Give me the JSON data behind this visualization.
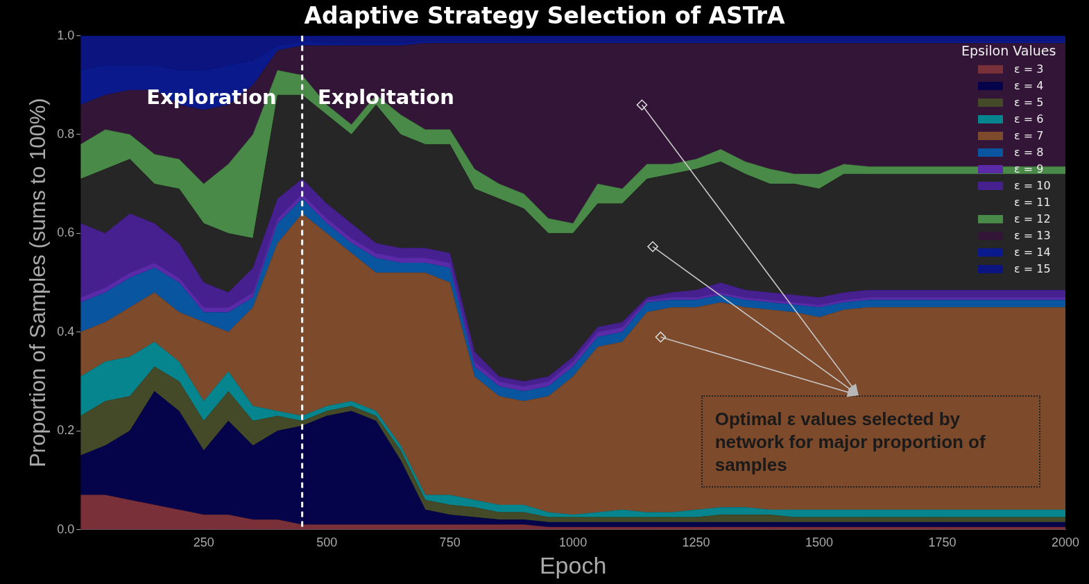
{
  "chart_data": {
    "type": "area",
    "stacked": true,
    "title": "Adaptive Strategy Selection of ASTrA",
    "xlabel": "Epoch",
    "ylabel": "Proportion of Samples (sums to 100%)",
    "legend_title": "Epsilon Values",
    "legend": "top right",
    "grid": false,
    "x": [
      0,
      50,
      100,
      150,
      200,
      250,
      300,
      350,
      400,
      450,
      500,
      550,
      600,
      650,
      700,
      750,
      800,
      850,
      900,
      950,
      1000,
      1050,
      1100,
      1150,
      1200,
      1250,
      1300,
      1350,
      1400,
      1450,
      1500,
      1550,
      1600,
      1650,
      1700,
      1750,
      2000
    ],
    "xlim": [
      0,
      2000
    ],
    "xticks": [
      250,
      500,
      750,
      1000,
      1250,
      1500,
      1750,
      2000
    ],
    "ylim": [
      0,
      1
    ],
    "yticks": [
      {
        "value": 0,
        "label": "0.0"
      },
      {
        "value": 0.2,
        "label": "0.2"
      },
      {
        "value": 0.4,
        "label": "0.4"
      },
      {
        "value": 0.6,
        "label": "0.6"
      },
      {
        "value": 0.8,
        "label": "0.8"
      },
      {
        "value": 1,
        "label": "1.0"
      }
    ],
    "series": [
      {
        "name": "ε = 3",
        "color": "#7a3038",
        "values": [
          0.07,
          0.07,
          0.06,
          0.05,
          0.04,
          0.03,
          0.03,
          0.02,
          0.02,
          0.01,
          0.01,
          0.01,
          0.01,
          0.01,
          0.01,
          0.01,
          0.01,
          0.01,
          0.01,
          0.005,
          0.005,
          0.005,
          0.005,
          0.005,
          0.005,
          0.005,
          0.005,
          0.005,
          0.005,
          0.005,
          0.005,
          0.005,
          0.005,
          0.005,
          0.005,
          0.005,
          0.005
        ]
      },
      {
        "name": "ε = 4",
        "color": "#05044a",
        "values": [
          0.08,
          0.1,
          0.14,
          0.23,
          0.2,
          0.13,
          0.19,
          0.15,
          0.18,
          0.2,
          0.22,
          0.23,
          0.21,
          0.13,
          0.03,
          0.02,
          0.015,
          0.01,
          0.01,
          0.01,
          0.01,
          0.01,
          0.01,
          0.01,
          0.01,
          0.01,
          0.01,
          0.01,
          0.01,
          0.01,
          0.01,
          0.01,
          0.01,
          0.01,
          0.01,
          0.01,
          0.01
        ]
      },
      {
        "name": "ε = 5",
        "color": "#444a28",
        "values": [
          0.08,
          0.09,
          0.07,
          0.05,
          0.06,
          0.06,
          0.06,
          0.05,
          0.03,
          0.01,
          0.01,
          0.01,
          0.01,
          0.02,
          0.02,
          0.02,
          0.02,
          0.015,
          0.015,
          0.01,
          0.01,
          0.01,
          0.01,
          0.01,
          0.01,
          0.01,
          0.015,
          0.015,
          0.015,
          0.01,
          0.01,
          0.01,
          0.01,
          0.01,
          0.01,
          0.01,
          0.01
        ]
      },
      {
        "name": "ε = 6",
        "color": "#06858e",
        "values": [
          0.08,
          0.08,
          0.08,
          0.05,
          0.04,
          0.04,
          0.04,
          0.03,
          0.01,
          0.01,
          0.01,
          0.01,
          0.01,
          0.01,
          0.01,
          0.02,
          0.015,
          0.015,
          0.015,
          0.01,
          0.005,
          0.01,
          0.015,
          0.01,
          0.01,
          0.015,
          0.015,
          0.015,
          0.01,
          0.015,
          0.015,
          0.015,
          0.015,
          0.015,
          0.015,
          0.015,
          0.015
        ]
      },
      {
        "name": "ε = 7",
        "color": "#7d4a2b",
        "values": [
          0.09,
          0.08,
          0.1,
          0.1,
          0.1,
          0.16,
          0.08,
          0.2,
          0.34,
          0.41,
          0.35,
          0.3,
          0.28,
          0.35,
          0.45,
          0.43,
          0.25,
          0.22,
          0.21,
          0.235,
          0.28,
          0.335,
          0.34,
          0.405,
          0.415,
          0.41,
          0.415,
          0.405,
          0.405,
          0.4,
          0.39,
          0.405,
          0.41,
          0.41,
          0.41,
          0.41,
          0.41
        ]
      },
      {
        "name": "ε = 8",
        "color": "#0a55a0",
        "values": [
          0.06,
          0.06,
          0.06,
          0.05,
          0.06,
          0.02,
          0.04,
          0.02,
          0.04,
          0.03,
          0.02,
          0.02,
          0.03,
          0.02,
          0.02,
          0.03,
          0.02,
          0.02,
          0.02,
          0.02,
          0.02,
          0.02,
          0.02,
          0.02,
          0.015,
          0.015,
          0.015,
          0.015,
          0.015,
          0.015,
          0.02,
          0.015,
          0.015,
          0.015,
          0.015,
          0.015,
          0.015
        ]
      },
      {
        "name": "ε = 9",
        "color": "#5a2aa8",
        "values": [
          0.01,
          0.01,
          0.01,
          0.01,
          0.01,
          0.01,
          0.01,
          0.01,
          0.01,
          0.01,
          0.01,
          0.01,
          0.01,
          0.01,
          0.01,
          0.01,
          0.01,
          0.01,
          0.01,
          0.01,
          0.01,
          0.01,
          0.01,
          0.005,
          0.005,
          0.005,
          0.005,
          0.005,
          0.005,
          0.005,
          0.005,
          0.005,
          0.005,
          0.005,
          0.005,
          0.005,
          0.005
        ]
      },
      {
        "name": "ε = 10",
        "color": "#47208f",
        "values": [
          0.15,
          0.11,
          0.12,
          0.08,
          0.07,
          0.05,
          0.03,
          0.05,
          0.04,
          0.03,
          0.03,
          0.03,
          0.02,
          0.02,
          0.02,
          0.02,
          0.02,
          0.01,
          0.01,
          0.01,
          0.01,
          0.01,
          0.01,
          0.005,
          0.01,
          0.015,
          0.02,
          0.015,
          0.015,
          0.015,
          0.015,
          0.015,
          0.015,
          0.015,
          0.015,
          0.015,
          0.015
        ]
      },
      {
        "name": "ε = 11",
        "color": "#262626",
        "values": [
          0.09,
          0.13,
          0.11,
          0.08,
          0.11,
          0.12,
          0.12,
          0.06,
          0.21,
          0.17,
          0.18,
          0.18,
          0.28,
          0.23,
          0.21,
          0.22,
          0.33,
          0.36,
          0.35,
          0.29,
          0.25,
          0.25,
          0.24,
          0.24,
          0.24,
          0.245,
          0.245,
          0.235,
          0.22,
          0.225,
          0.22,
          0.24,
          0.235,
          0.235,
          0.235,
          0.235,
          0.235
        ]
      },
      {
        "name": "ε = 12",
        "color": "#4a8a48",
        "values": [
          0.07,
          0.08,
          0.05,
          0.06,
          0.06,
          0.08,
          0.14,
          0.21,
          0.05,
          0.04,
          0.02,
          0.02,
          0.02,
          0.04,
          0.03,
          0.03,
          0.04,
          0.03,
          0.03,
          0.03,
          0.02,
          0.04,
          0.03,
          0.03,
          0.02,
          0.02,
          0.025,
          0.025,
          0.03,
          0.02,
          0.03,
          0.02,
          0.015,
          0.015,
          0.015,
          0.015,
          0.015
        ]
      },
      {
        "name": "ε = 13",
        "color": "#331538",
        "values": [
          0.08,
          0.07,
          0.09,
          0.13,
          0.11,
          0.15,
          0.12,
          0.1,
          0.04,
          0.06,
          0.12,
          0.16,
          0.1,
          0.14,
          0.175,
          0.175,
          0.255,
          0.285,
          0.305,
          0.355,
          0.365,
          0.285,
          0.295,
          0.245,
          0.245,
          0.235,
          0.215,
          0.24,
          0.255,
          0.265,
          0.265,
          0.245,
          0.25,
          0.25,
          0.25,
          0.25,
          0.25
        ]
      },
      {
        "name": "ε = 14",
        "color": "#0a1a8c",
        "values": [
          0.07,
          0.06,
          0.05,
          0.05,
          0.07,
          0.08,
          0.08,
          0.05,
          0.01,
          0.01,
          0.005,
          0.005,
          0.005,
          0.005,
          0.005,
          0.005,
          0.005,
          0.005,
          0.005,
          0.005,
          0.005,
          0.005,
          0.005,
          0.005,
          0.005,
          0.005,
          0.005,
          0.005,
          0.005,
          0.005,
          0.005,
          0.005,
          0.005,
          0.005,
          0.005,
          0.005,
          0.005
        ]
      },
      {
        "name": "ε = 15",
        "color": "#0c1480",
        "values": [
          0.07,
          0.06,
          0.06,
          0.06,
          0.07,
          0.07,
          0.06,
          0.05,
          0.02,
          0.01,
          0.015,
          0.015,
          0.015,
          0.015,
          0.01,
          0.01,
          0.01,
          0.01,
          0.01,
          0.01,
          0.01,
          0.01,
          0.01,
          0.01,
          0.01,
          0.01,
          0.01,
          0.01,
          0.01,
          0.01,
          0.01,
          0.01,
          0.01,
          0.01,
          0.01,
          0.01,
          0.01
        ]
      }
    ],
    "ref_lines": [
      {
        "axis": "x",
        "value": 450,
        "color": "#ffffff",
        "line_style": "dashed"
      }
    ],
    "annotations": [
      "Exploration",
      "Exploitation",
      "Optimal ε values selected by network for major proportion of samples"
    ]
  }
}
